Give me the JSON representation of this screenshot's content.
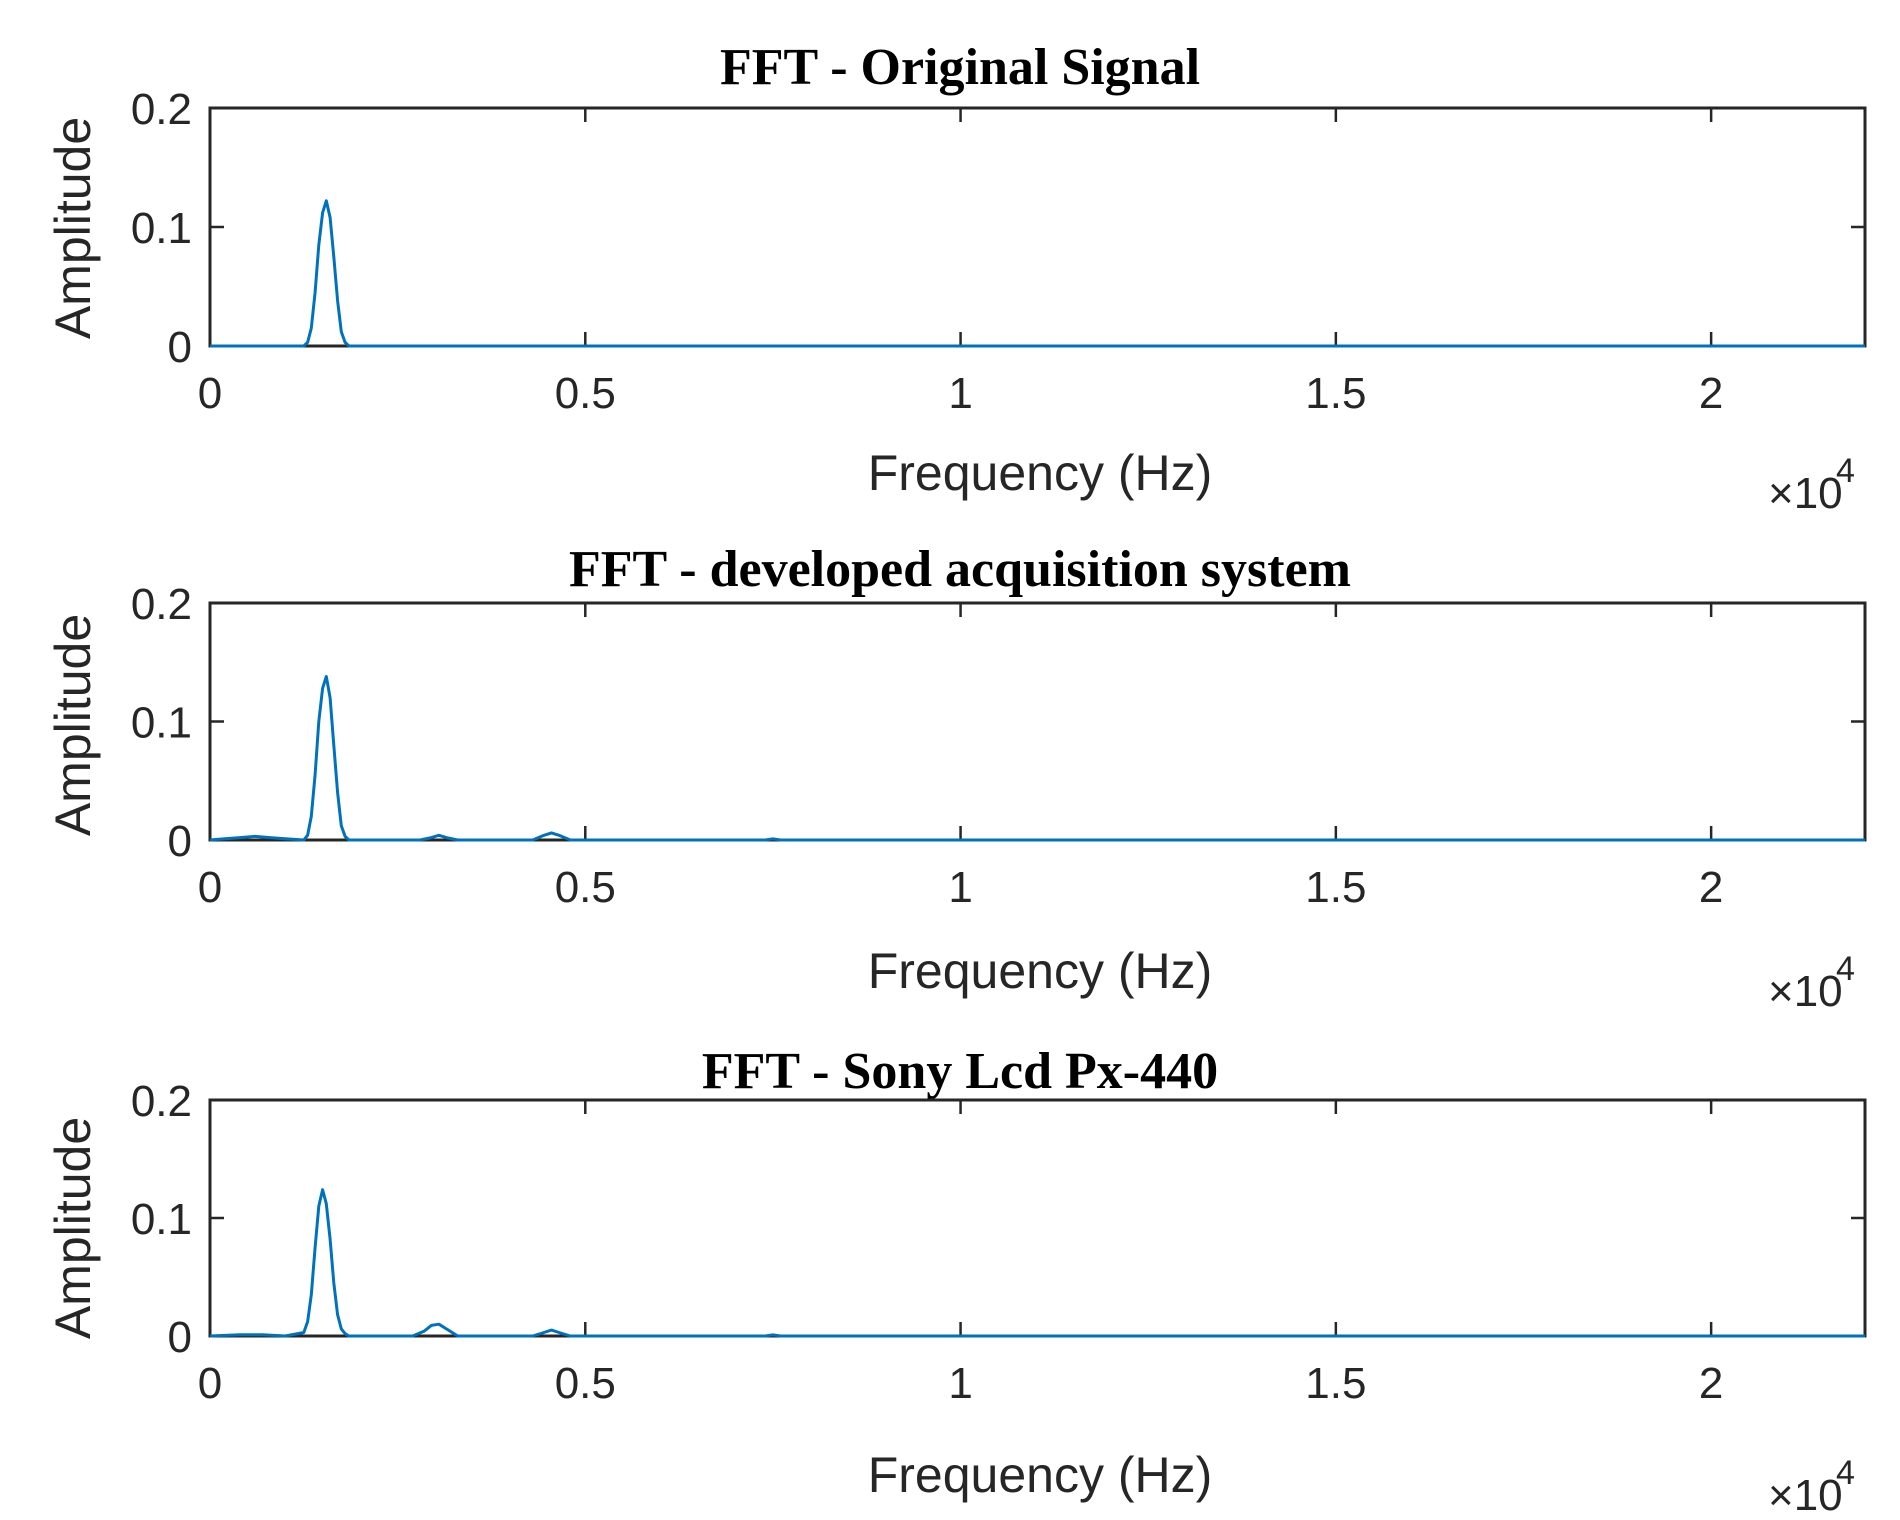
{
  "figure": {
    "xlabel": "Frequency (Hz)",
    "ylabel": "Amplitude",
    "exponent_label": "×10",
    "exponent_power": "4",
    "line_color": "#0072BD"
  },
  "chart_data": [
    {
      "type": "line",
      "title": "FFT - Original Signal",
      "xlabel": "Frequency (Hz)",
      "ylabel": "Amplitude",
      "xlim": [
        0,
        22050
      ],
      "ylim": [
        0,
        0.2
      ],
      "x_ticks": [
        0,
        5000,
        10000,
        15000,
        20000
      ],
      "x_tick_labels": [
        "0",
        "0.5",
        "1",
        "1.5",
        "2"
      ],
      "y_ticks": [
        0,
        0.1,
        0.2
      ],
      "y_tick_labels": [
        "0",
        "0.1",
        "0.2"
      ],
      "x_multiplier": "×10^4",
      "grid": false,
      "series": [
        {
          "x": [
            0,
            1250,
            1300,
            1350,
            1400,
            1450,
            1500,
            1550,
            1600,
            1650,
            1700,
            1750,
            1800,
            1850,
            22050
          ],
          "y": [
            0,
            0,
            0.003,
            0.015,
            0.045,
            0.085,
            0.112,
            0.122,
            0.108,
            0.075,
            0.038,
            0.012,
            0.003,
            0,
            0
          ]
        }
      ]
    },
    {
      "type": "line",
      "title": "FFT - developed acquisition system",
      "xlabel": "Frequency (Hz)",
      "ylabel": "Amplitude",
      "xlim": [
        0,
        22050
      ],
      "ylim": [
        0,
        0.2
      ],
      "x_ticks": [
        0,
        5000,
        10000,
        15000,
        20000
      ],
      "x_tick_labels": [
        "0",
        "0.5",
        "1",
        "1.5",
        "2"
      ],
      "y_ticks": [
        0,
        0.1,
        0.2
      ],
      "y_tick_labels": [
        "0",
        "0.1",
        "0.2"
      ],
      "x_multiplier": "×10^4",
      "grid": false,
      "series": [
        {
          "x": [
            0,
            200,
            400,
            600,
            800,
            1000,
            1250,
            1300,
            1350,
            1400,
            1450,
            1500,
            1550,
            1600,
            1650,
            1700,
            1750,
            1800,
            1850,
            2800,
            2950,
            3050,
            3150,
            3300,
            4300,
            4450,
            4550,
            4650,
            4800,
            7400,
            7500,
            7600,
            22050
          ],
          "y": [
            0,
            0.001,
            0.002,
            0.003,
            0.002,
            0.001,
            0,
            0.004,
            0.02,
            0.055,
            0.1,
            0.128,
            0.138,
            0.12,
            0.08,
            0.04,
            0.012,
            0.003,
            0,
            0,
            0.002,
            0.004,
            0.002,
            0,
            0,
            0.004,
            0.006,
            0.004,
            0,
            0,
            0.001,
            0,
            0
          ]
        }
      ]
    },
    {
      "type": "line",
      "title": "FFT - Sony Lcd Px-440",
      "xlabel": "Frequency (Hz)",
      "ylabel": "Amplitude",
      "xlim": [
        0,
        22050
      ],
      "ylim": [
        0,
        0.2
      ],
      "x_ticks": [
        0,
        5000,
        10000,
        15000,
        20000
      ],
      "x_tick_labels": [
        "0",
        "0.5",
        "1",
        "1.5",
        "2"
      ],
      "y_ticks": [
        0,
        0.1,
        0.2
      ],
      "y_tick_labels": [
        "0",
        "0.1",
        "0.2"
      ],
      "x_multiplier": "×10^4",
      "grid": false,
      "series": [
        {
          "x": [
            0,
            400,
            700,
            1000,
            1250,
            1300,
            1350,
            1400,
            1450,
            1500,
            1550,
            1600,
            1650,
            1700,
            1750,
            1800,
            1850,
            2700,
            2850,
            2950,
            3050,
            3150,
            3300,
            4300,
            4450,
            4550,
            4650,
            4800,
            7400,
            7500,
            7600,
            22050
          ],
          "y": [
            0,
            0.001,
            0.001,
            0,
            0.003,
            0.012,
            0.035,
            0.075,
            0.11,
            0.124,
            0.112,
            0.082,
            0.045,
            0.018,
            0.006,
            0.002,
            0,
            0,
            0.004,
            0.009,
            0.01,
            0.006,
            0,
            0,
            0.003,
            0.005,
            0.003,
            0,
            0,
            0.001,
            0,
            0
          ]
        }
      ]
    }
  ]
}
